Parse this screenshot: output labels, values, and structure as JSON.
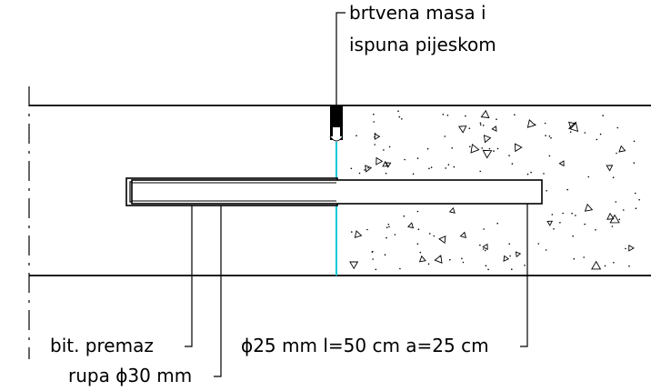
{
  "labels": {
    "sealant_line1": "brtvena masa i",
    "sealant_line2": "ispuna pijeskom",
    "coating": "bit. premaz",
    "hole": "rupa ϕ30 mm",
    "dowel": "ϕ25 mm l=50 cm a=25 cm"
  },
  "colors": {
    "ink": "#000000",
    "joint": "#00c8d8",
    "background": "#ffffff"
  }
}
